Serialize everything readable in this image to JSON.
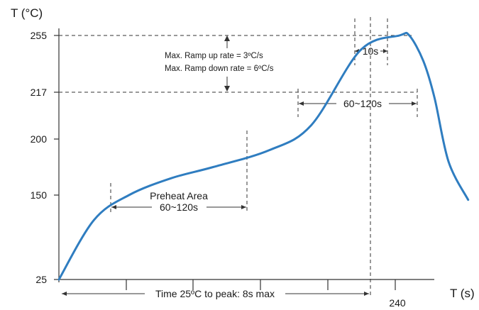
{
  "chart_data": {
    "type": "line",
    "ylabel": "T (°C)",
    "xlabel": "T (s)",
    "y_ticks": [
      "25",
      "150",
      "200",
      "217",
      "255"
    ],
    "x_tick_labels": [
      "240"
    ],
    "series": [
      {
        "values": [
          [
            0,
            25
          ],
          [
            25,
            113
          ],
          [
            50,
            150
          ],
          [
            80,
            165
          ],
          [
            110,
            175
          ],
          [
            150,
            190
          ],
          [
            180,
            205
          ],
          [
            215,
            245
          ],
          [
            243,
            255
          ],
          [
            250,
            255
          ],
          [
            260,
            238
          ],
          [
            268,
            215
          ],
          [
            278,
            180
          ],
          [
            292,
            143
          ]
        ]
      }
    ],
    "annotations": {
      "ramp_up": "Max. Ramp up rate = 3ºC/s",
      "ramp_down": "Max. Ramp down rate = 6ºC/s",
      "peak_window": "10s",
      "above_217": "60~120s",
      "preheat_title": "Preheat Area",
      "preheat_duration": "60~120s",
      "time_to_peak": "Time 25ºC to peak: 8s max"
    },
    "colors": {
      "curve": "#2f7dc0",
      "axes": "#333333"
    }
  }
}
